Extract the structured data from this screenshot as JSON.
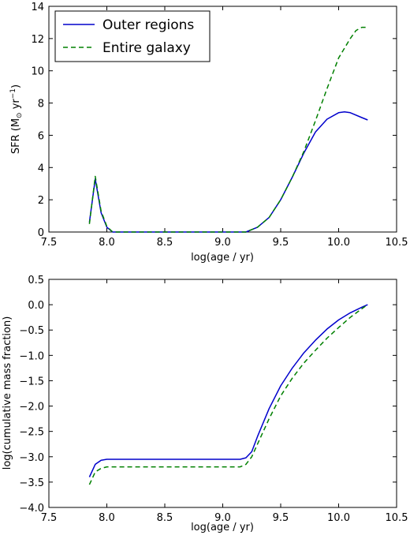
{
  "chart_data": [
    {
      "type": "line",
      "xlabel": "log(age / yr)",
      "ylabel_main": "SFR (M",
      "ylabel_sub": "⊙",
      "ylabel_mid": " yr",
      "ylabel_sup": "−1",
      "ylabel_end": ")",
      "xlim": [
        7.5,
        10.5
      ],
      "ylim": [
        0,
        14
      ],
      "xticks": [
        "7.5",
        "8.0",
        "8.5",
        "9.0",
        "9.5",
        "10.0",
        "10.5"
      ],
      "yticks": [
        "0",
        "2",
        "4",
        "6",
        "8",
        "10",
        "12",
        "14"
      ],
      "grid": false,
      "legend_position": "top-left",
      "series": [
        {
          "name": "Outer regions",
          "color": "#0000cc",
          "style": "solid",
          "x": [
            7.85,
            7.9,
            7.95,
            8.0,
            8.05,
            8.1,
            8.5,
            9.0,
            9.2,
            9.3,
            9.4,
            9.5,
            9.6,
            9.7,
            9.8,
            9.9,
            10.0,
            10.05,
            10.1,
            10.2,
            10.25
          ],
          "y": [
            0.6,
            3.3,
            1.2,
            0.3,
            0.0,
            0.0,
            0.0,
            0.0,
            0.0,
            0.3,
            0.9,
            2.0,
            3.4,
            4.9,
            6.2,
            7.0,
            7.4,
            7.45,
            7.4,
            7.1,
            6.95
          ]
        },
        {
          "name": "Entire galaxy",
          "color": "#008000",
          "style": "dashed",
          "x": [
            7.85,
            7.9,
            7.95,
            8.0,
            8.05,
            8.1,
            8.5,
            9.0,
            9.2,
            9.3,
            9.4,
            9.5,
            9.6,
            9.7,
            9.8,
            9.9,
            10.0,
            10.1,
            10.15,
            10.2,
            10.25
          ],
          "y": [
            0.5,
            3.45,
            1.3,
            0.35,
            0.0,
            0.0,
            0.0,
            0.0,
            0.0,
            0.3,
            0.9,
            2.0,
            3.4,
            5.0,
            6.9,
            8.9,
            10.8,
            12.0,
            12.5,
            12.7,
            12.7
          ]
        }
      ]
    },
    {
      "type": "line",
      "xlabel": "log(age / yr)",
      "ylabel": "log(cumulative mass fraction)",
      "xlim": [
        7.5,
        10.5
      ],
      "ylim": [
        -4.0,
        0.5
      ],
      "xticks": [
        "7.5",
        "8.0",
        "8.5",
        "9.0",
        "9.5",
        "10.0",
        "10.5"
      ],
      "yticks": [
        "0.5",
        "0.0",
        "−0.5",
        "−1.0",
        "−1.5",
        "−2.0",
        "−2.5",
        "−3.0",
        "−3.5",
        "−4.0"
      ],
      "grid": false,
      "series": [
        {
          "name": "Outer regions",
          "color": "#0000cc",
          "style": "solid",
          "x": [
            7.85,
            7.9,
            7.95,
            8.0,
            8.5,
            9.0,
            9.15,
            9.2,
            9.25,
            9.3,
            9.4,
            9.5,
            9.6,
            9.7,
            9.8,
            9.9,
            10.0,
            10.1,
            10.2,
            10.25
          ],
          "y": [
            -3.4,
            -3.15,
            -3.07,
            -3.05,
            -3.05,
            -3.05,
            -3.05,
            -3.02,
            -2.9,
            -2.6,
            -2.05,
            -1.6,
            -1.25,
            -0.95,
            -0.7,
            -0.48,
            -0.3,
            -0.16,
            -0.05,
            0.0
          ]
        },
        {
          "name": "Entire galaxy",
          "color": "#008000",
          "style": "dashed",
          "x": [
            7.85,
            7.9,
            7.95,
            8.0,
            8.5,
            9.0,
            9.15,
            9.2,
            9.25,
            9.3,
            9.4,
            9.5,
            9.6,
            9.7,
            9.8,
            9.9,
            10.0,
            10.1,
            10.2,
            10.25
          ],
          "y": [
            -3.55,
            -3.3,
            -3.23,
            -3.2,
            -3.2,
            -3.2,
            -3.2,
            -3.15,
            -3.0,
            -2.75,
            -2.25,
            -1.8,
            -1.45,
            -1.15,
            -0.9,
            -0.66,
            -0.45,
            -0.25,
            -0.08,
            0.0
          ]
        }
      ]
    }
  ]
}
